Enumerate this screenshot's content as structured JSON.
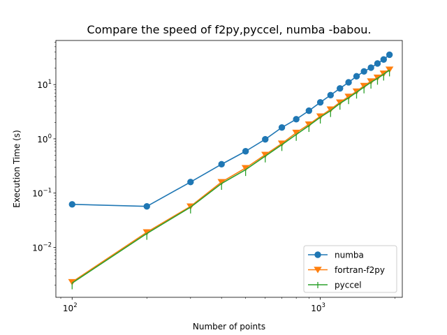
{
  "chart_data": {
    "type": "line",
    "title": "Compare the speed of f2py,pyccel, numba -babou.",
    "xlabel": "Number of points",
    "ylabel": "Execution Time (s)",
    "xscale": "log",
    "yscale": "log",
    "xlim": [
      86,
      2140
    ],
    "ylim": [
      0.0012,
      65
    ],
    "x_ticks": [
      {
        "value": 100,
        "base": "10",
        "exp": "2"
      },
      {
        "value": 1000,
        "base": "10",
        "exp": "3"
      }
    ],
    "y_ticks": [
      {
        "value": 0.01,
        "base": "10",
        "exp": "−2"
      },
      {
        "value": 0.1,
        "base": "10",
        "exp": "−1"
      },
      {
        "value": 1,
        "base": "10",
        "exp": "0"
      },
      {
        "value": 10,
        "base": "10",
        "exp": "1"
      }
    ],
    "grid": false,
    "legend_position": "lower-right",
    "x": [
      100,
      200,
      300,
      400,
      500,
      600,
      700,
      800,
      900,
      1000,
      1100,
      1200,
      1300,
      1400,
      1500,
      1600,
      1700,
      1800,
      1900
    ],
    "series": [
      {
        "name": "numba",
        "color": "#1f77b4",
        "marker": "circle",
        "x": [
          100,
          200,
          300,
          400,
          500,
          600,
          700,
          800,
          900,
          1000,
          1100,
          1200,
          1300,
          1400,
          1500,
          1600,
          1700,
          1800,
          1900
        ],
        "values": [
          0.062,
          0.057,
          0.16,
          0.34,
          0.59,
          0.98,
          1.62,
          2.3,
          3.3,
          4.7,
          6.4,
          8.5,
          11.0,
          14.2,
          17.5,
          20.5,
          24.5,
          29.0,
          35.5
        ]
      },
      {
        "name": "fortran-f2py",
        "color": "#ff7f0e",
        "marker": "triangle-down",
        "x": [
          100,
          200,
          300,
          400,
          500,
          600,
          700,
          800,
          900,
          1000,
          1100,
          1200,
          1300,
          1400,
          1500,
          1600,
          1700,
          1800,
          1900
        ],
        "values": [
          0.0023,
          0.019,
          0.057,
          0.16,
          0.29,
          0.51,
          0.82,
          1.3,
          1.85,
          2.6,
          3.5,
          4.7,
          6.0,
          7.5,
          9.5,
          11.5,
          13.5,
          16.0,
          19.0
        ]
      },
      {
        "name": "pyccel",
        "color": "#2ca02c",
        "marker": "tick-down",
        "x": [
          100,
          200,
          300,
          400,
          500,
          600,
          700,
          800,
          900,
          1000,
          1100,
          1200,
          1300,
          1400,
          1500,
          1600,
          1700,
          1800,
          1900
        ],
        "values": [
          0.0022,
          0.018,
          0.055,
          0.15,
          0.27,
          0.48,
          0.78,
          1.2,
          1.75,
          2.5,
          3.3,
          4.5,
          5.7,
          7.2,
          9.0,
          11.0,
          13.0,
          15.5,
          18.5
        ]
      }
    ]
  }
}
